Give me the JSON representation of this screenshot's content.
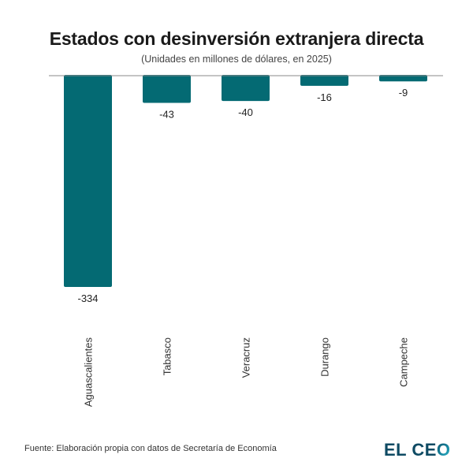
{
  "header": {
    "title": "Estados con desinversión extranjera directa",
    "subtitle": "(Unidades en millones de dólares, en 2025)"
  },
  "footer": {
    "source": "Fuente: Elaboración propia con datos de Secretaría de Economía",
    "logo_main": "EL CE",
    "logo_accent": "O"
  },
  "colors": {
    "bar": "#046a73",
    "axis": "#888888",
    "logo": "#0e4a63"
  },
  "chart_data": {
    "type": "bar",
    "title": "Estados con desinversión extranjera directa",
    "subtitle": "(Unidades en millones de dólares, en 2025)",
    "xlabel": "",
    "ylabel": "",
    "categories": [
      "Aguascalientes",
      "Tabasco",
      "Veracruz",
      "Durango",
      "Campeche"
    ],
    "values": [
      -334,
      -43,
      -40,
      -16,
      -9
    ],
    "data_labels": [
      "-334",
      "-43",
      "-40",
      "-16",
      "-9"
    ],
    "ylim": [
      -334,
      0
    ],
    "grid": false,
    "legend": "none",
    "category_label_orientation": "vertical"
  }
}
